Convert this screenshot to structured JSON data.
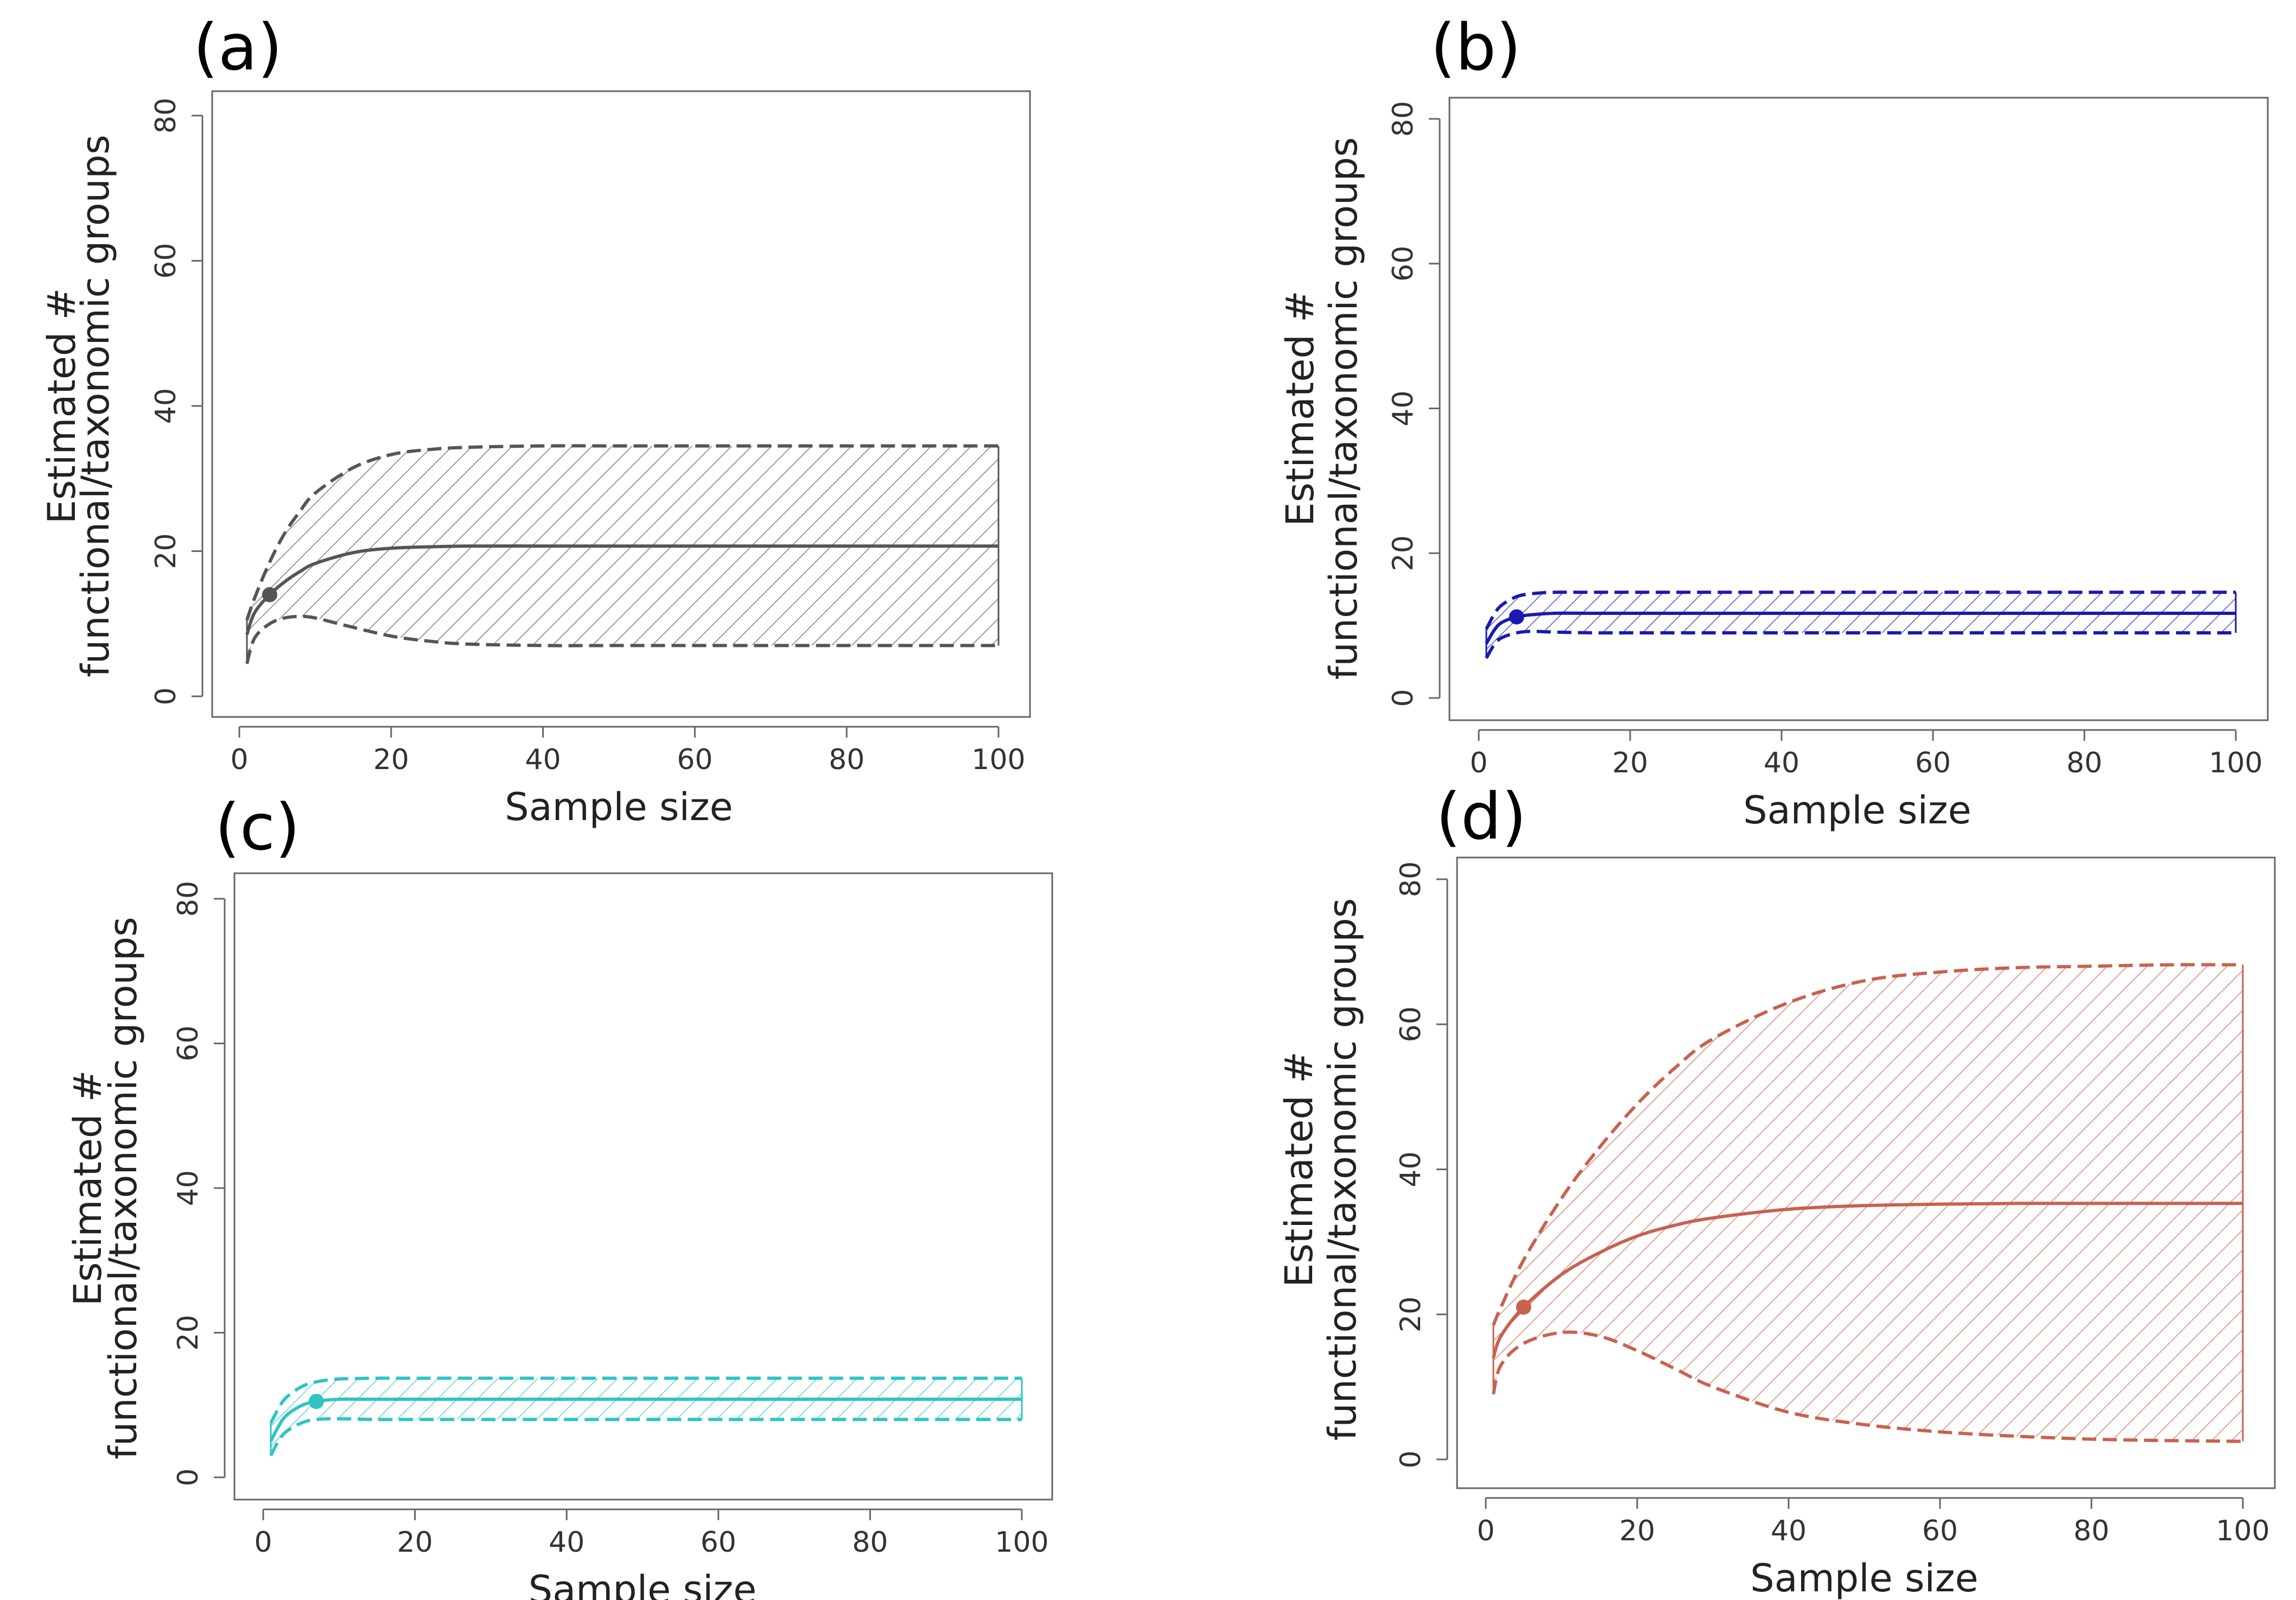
{
  "figure": {
    "panels": [
      {
        "label": "(a)",
        "color": "#555555"
      },
      {
        "label": "(b)",
        "color": "#1a1ab0"
      },
      {
        "label": "(c)",
        "color": "#2ec4c4"
      },
      {
        "label": "(d)",
        "color": "#c9614f"
      }
    ],
    "xlabel": "Sample size",
    "ylabel_line1": "Estimated #",
    "ylabel_line2": "functional/taxonomic groups"
  },
  "chart_data": [
    {
      "type": "line",
      "panel": "(a)",
      "xlabel": "Sample size",
      "ylabel": "Estimated # functional/taxonomic groups",
      "xlim": [
        0,
        100
      ],
      "ylim": [
        0,
        80
      ],
      "xticks": [
        0,
        20,
        40,
        60,
        80,
        100
      ],
      "yticks": [
        0,
        20,
        40,
        60,
        80
      ],
      "color": "#555555",
      "observed_point": {
        "x": 4,
        "y": 14
      },
      "x": [
        1,
        2,
        4,
        6,
        8,
        10,
        15,
        20,
        25,
        30,
        40,
        50,
        60,
        80,
        100
      ],
      "series": [
        {
          "role": "upper",
          "values": [
            10.5,
            13.5,
            18.5,
            22.5,
            25.5,
            28.0,
            31.5,
            33.3,
            34.0,
            34.3,
            34.5,
            34.5,
            34.5,
            34.5,
            34.5
          ]
        },
        {
          "role": "estimate",
          "values": [
            8.5,
            11.5,
            14.0,
            15.8,
            17.2,
            18.3,
            19.8,
            20.4,
            20.6,
            20.7,
            20.7,
            20.7,
            20.7,
            20.7,
            20.7
          ]
        },
        {
          "role": "lower",
          "values": [
            4.5,
            8.0,
            10.0,
            10.8,
            11.0,
            10.8,
            9.5,
            8.3,
            7.6,
            7.2,
            7.0,
            7.0,
            7.0,
            7.0,
            7.0
          ]
        }
      ]
    },
    {
      "type": "line",
      "panel": "(b)",
      "xlabel": "Sample size",
      "ylabel": "Estimated # functional/taxonomic groups",
      "xlim": [
        0,
        100
      ],
      "ylim": [
        0,
        80
      ],
      "xticks": [
        0,
        20,
        40,
        60,
        80,
        100
      ],
      "yticks": [
        0,
        20,
        40,
        60,
        80
      ],
      "color": "#1a1ab0",
      "observed_point": {
        "x": 5,
        "y": 11.2
      },
      "x": [
        1,
        2,
        3,
        5,
        7,
        10,
        15,
        20,
        40,
        60,
        80,
        100
      ],
      "series": [
        {
          "role": "upper",
          "values": [
            9.5,
            11.5,
            12.8,
            14.0,
            14.4,
            14.6,
            14.6,
            14.6,
            14.6,
            14.6,
            14.6,
            14.6
          ]
        },
        {
          "role": "estimate",
          "values": [
            7.5,
            9.3,
            10.4,
            11.2,
            11.5,
            11.7,
            11.7,
            11.7,
            11.7,
            11.7,
            11.7,
            11.7
          ]
        },
        {
          "role": "lower",
          "values": [
            5.5,
            7.3,
            8.3,
            9.0,
            9.2,
            9.1,
            9.0,
            9.0,
            9.0,
            9.0,
            9.0,
            9.0
          ]
        }
      ]
    },
    {
      "type": "line",
      "panel": "(c)",
      "xlabel": "Sample size",
      "ylabel": "Estimated # functional/taxonomic groups",
      "xlim": [
        0,
        100
      ],
      "ylim": [
        0,
        80
      ],
      "xticks": [
        0,
        20,
        40,
        60,
        80,
        100
      ],
      "yticks": [
        0,
        20,
        40,
        60,
        80
      ],
      "color": "#2ec4c4",
      "observed_point": {
        "x": 7,
        "y": 10.5
      },
      "x": [
        1,
        2,
        3,
        5,
        7,
        10,
        15,
        20,
        40,
        60,
        80,
        100
      ],
      "series": [
        {
          "role": "upper",
          "values": [
            7.5,
            9.5,
            11.0,
            12.5,
            13.2,
            13.6,
            13.7,
            13.7,
            13.7,
            13.7,
            13.7,
            13.7
          ]
        },
        {
          "role": "estimate",
          "values": [
            5.0,
            7.0,
            8.5,
            9.9,
            10.5,
            10.8,
            10.8,
            10.8,
            10.8,
            10.8,
            10.8,
            10.8
          ]
        },
        {
          "role": "lower",
          "values": [
            3.0,
            5.0,
            6.3,
            7.5,
            8.0,
            8.1,
            8.0,
            8.0,
            8.0,
            8.0,
            8.0,
            8.0
          ]
        }
      ]
    },
    {
      "type": "line",
      "panel": "(d)",
      "xlabel": "Sample size",
      "ylabel": "Estimated # functional/taxonomic groups",
      "xlim": [
        0,
        100
      ],
      "ylim": [
        0,
        80
      ],
      "xticks": [
        0,
        20,
        40,
        60,
        80,
        100
      ],
      "yticks": [
        0,
        20,
        40,
        60,
        80
      ],
      "color": "#c9614f",
      "observed_point": {
        "x": 5,
        "y": 21
      },
      "x": [
        1,
        2,
        5,
        10,
        15,
        20,
        25,
        30,
        40,
        50,
        60,
        70,
        80,
        90,
        100
      ],
      "series": [
        {
          "role": "upper",
          "values": [
            18.5,
            21.0,
            27.5,
            36.0,
            43.0,
            49.0,
            54.0,
            58.0,
            63.0,
            66.0,
            67.2,
            67.8,
            68.0,
            68.2,
            68.2
          ]
        },
        {
          "role": "estimate",
          "values": [
            14.0,
            17.0,
            21.0,
            25.5,
            28.5,
            30.8,
            32.3,
            33.3,
            34.5,
            35.0,
            35.2,
            35.3,
            35.3,
            35.3,
            35.3
          ]
        },
        {
          "role": "lower",
          "values": [
            9.0,
            13.0,
            16.0,
            17.5,
            17.0,
            15.0,
            12.5,
            10.0,
            6.5,
            4.8,
            3.8,
            3.2,
            2.8,
            2.6,
            2.5
          ]
        }
      ]
    }
  ]
}
